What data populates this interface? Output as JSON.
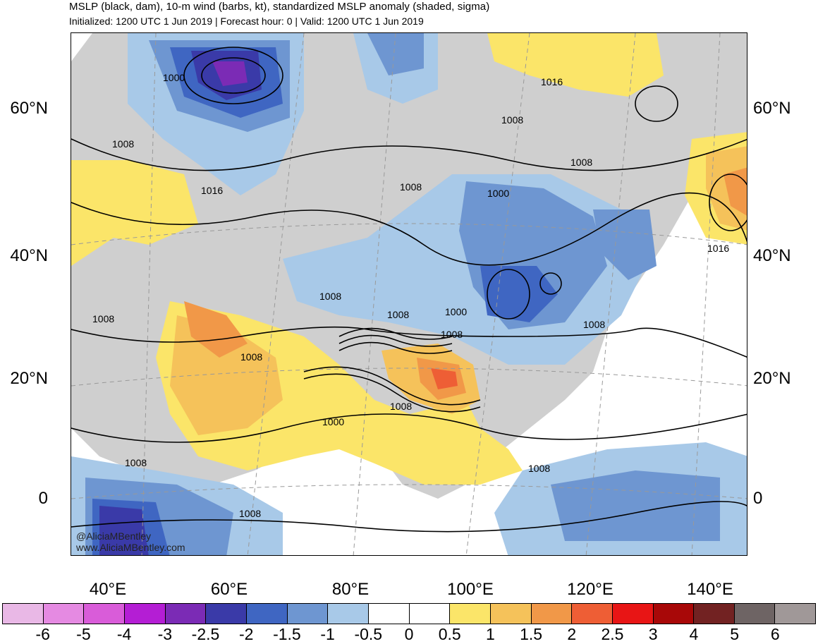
{
  "header": {
    "title": "MSLP (black, dam), 10-m wind (barbs, kt), standardized MSLP anomaly (shaded, sigma)",
    "subtitle": "Initialized: 1200 UTC 1 Jun 2019 | Forecast hour: 0 | Valid: 1200 UTC 1 Jun 2019"
  },
  "map": {
    "lat_labels": [
      "60°N",
      "40°N",
      "20°N",
      "0"
    ],
    "lon_labels": [
      "40°E",
      "60°E",
      "80°E",
      "100°E",
      "120°E",
      "140°E"
    ],
    "contour_labels": [
      "1000",
      "1008",
      "1016",
      "1016",
      "1008",
      "1008",
      "1008",
      "1000",
      "1016",
      "1008",
      "1008",
      "1000",
      "1008",
      "1008",
      "1008",
      "1000",
      "1008",
      "1008",
      "1008",
      "1008",
      "1008"
    ]
  },
  "colorbar": {
    "labels": [
      "-6",
      "-5",
      "-4",
      "-3",
      "-2.5",
      "-2",
      "-1.5",
      "-1",
      "-0.5",
      "0",
      "0.5",
      "1",
      "1.5",
      "2",
      "2.5",
      "3",
      "4",
      "5",
      "6"
    ],
    "colors": [
      "#e9b8e6",
      "#e58ae2",
      "#d95cd9",
      "#b41ed4",
      "#7b2bb5",
      "#3a3aa8",
      "#3f66c2",
      "#6e96d1",
      "#a8c9e8",
      "#ffffff",
      "#ffffff",
      "#fbe569",
      "#f5c25a",
      "#f19848",
      "#ee5e35",
      "#e81515",
      "#a80808",
      "#722222",
      "#6e6464",
      "#a09898"
    ]
  },
  "watermark": {
    "handle": "@AliciaMBentley",
    "site": "www.AliciaMBentley.com"
  }
}
